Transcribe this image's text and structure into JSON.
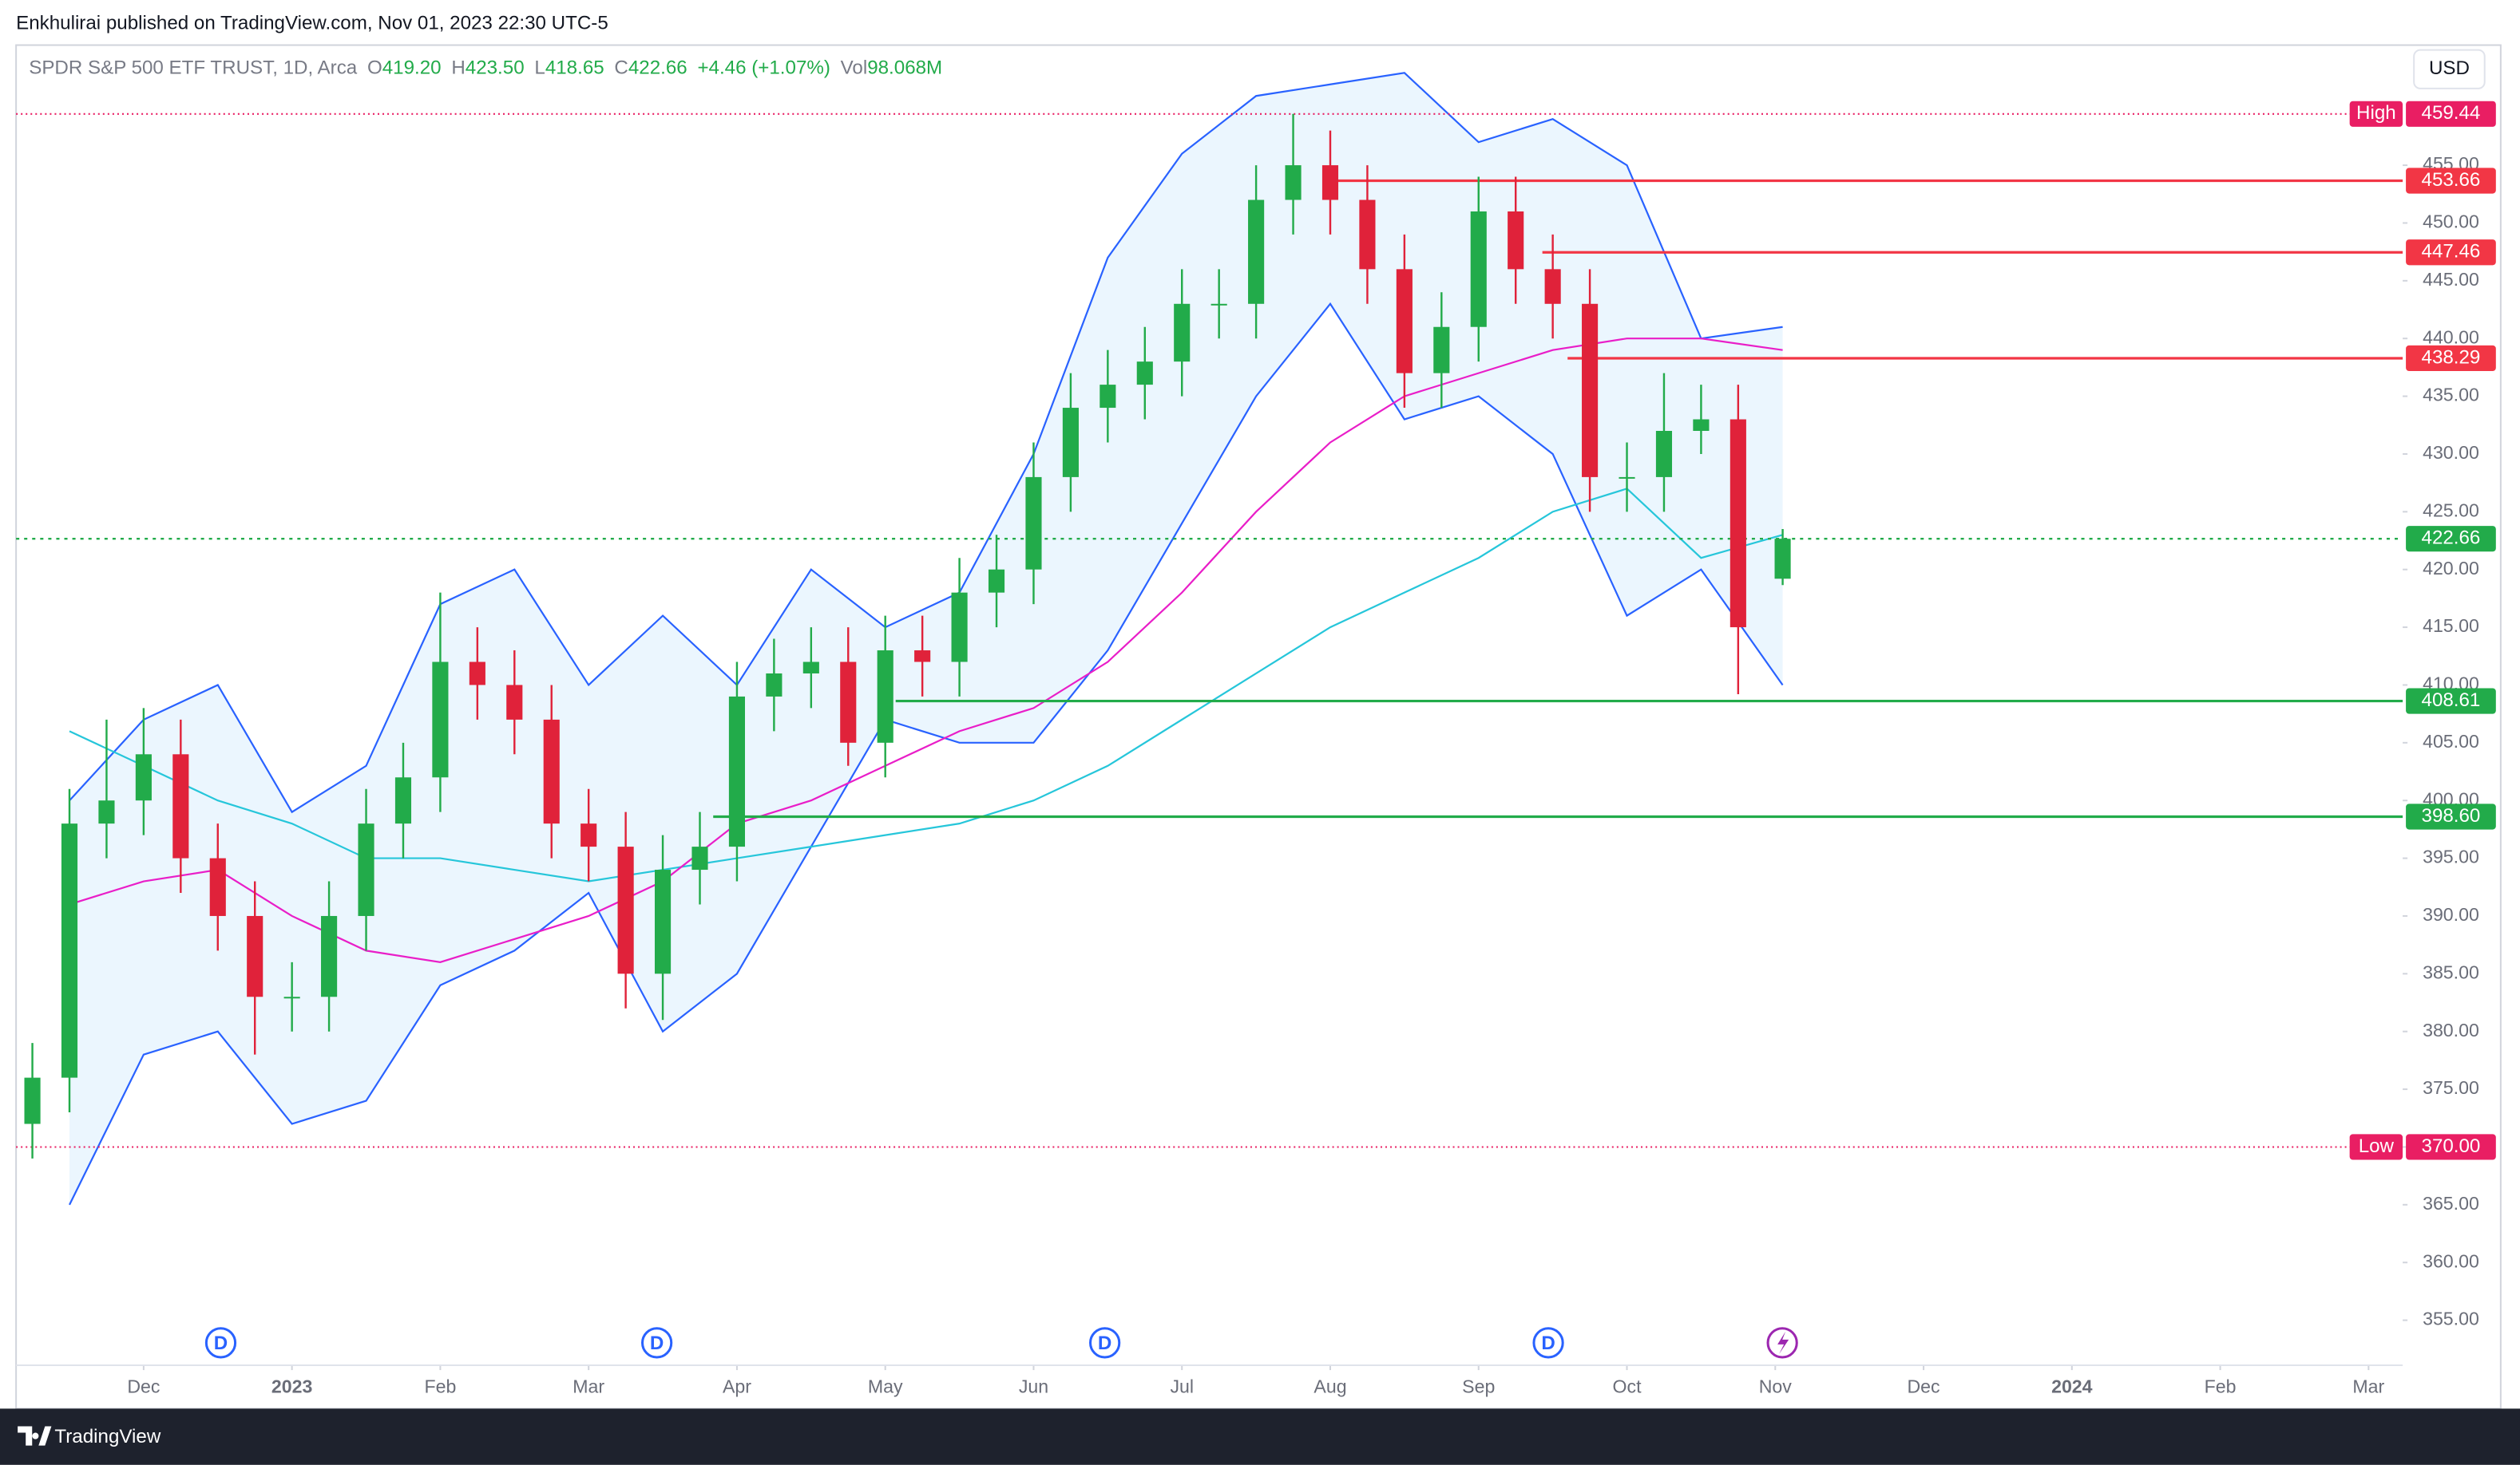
{
  "header": {
    "attribution": "Enkhulirai published on TradingView.com, Nov 01, 2023 22:30 UTC-5",
    "currency": "USD",
    "footer_brand": "TradingView"
  },
  "legend": {
    "symbol": "SPDR S&P 500 ETF TRUST, 1D, Arca",
    "o_label": "O",
    "o": "419.20",
    "h_label": "H",
    "h": "423.50",
    "l_label": "L",
    "l": "418.65",
    "c_label": "C",
    "c": "422.66",
    "change": "+4.46 (+1.07%)",
    "vol_label": "Vol",
    "vol": "98.068M"
  },
  "chart_data": {
    "type": "candlestick",
    "up_color": "#22ab4a",
    "down_color": "#e0223a",
    "x": [
      11.25,
      11.5,
      11.75,
      12,
      12.25,
      12.5,
      12.75,
      13,
      13.25,
      13.5,
      13.75,
      14,
      14.25,
      14.5,
      14.75,
      15,
      15.25,
      15.5,
      15.75,
      16,
      16.25,
      16.5,
      16.75,
      17,
      17.25,
      17.5,
      17.75,
      18,
      18.25,
      18.5,
      18.75,
      19,
      19.25,
      19.5,
      19.75,
      20,
      20.25,
      20.5,
      20.75,
      21,
      21.25,
      21.5,
      21.75,
      22,
      22.25,
      22.5,
      22.75,
      23.05
    ],
    "open": [
      372,
      376,
      398,
      400,
      404,
      395,
      390,
      383,
      383,
      390,
      398,
      402,
      412,
      410,
      407,
      398,
      396,
      385,
      394,
      396,
      409,
      411,
      412,
      405,
      413,
      412,
      418,
      420,
      428,
      434,
      436,
      438,
      443,
      443,
      452,
      455,
      452,
      446,
      437,
      441,
      451,
      446,
      443,
      428,
      428,
      432,
      433,
      419.2
    ],
    "high": [
      379,
      401,
      407,
      408,
      407,
      398,
      393,
      386,
      393,
      401,
      405,
      418,
      415,
      413,
      410,
      401,
      399,
      397,
      399,
      412,
      414,
      415,
      415,
      416,
      416,
      421,
      423,
      431,
      437,
      439,
      441,
      446,
      446,
      455,
      459.44,
      458,
      455,
      449,
      444,
      454,
      454,
      449,
      446,
      431,
      437,
      436,
      436,
      423.5
    ],
    "low": [
      369,
      373,
      395,
      397,
      392,
      387,
      378,
      380,
      380,
      387,
      395,
      399,
      407,
      404,
      395,
      393,
      382,
      381,
      391,
      393,
      406,
      408,
      403,
      402,
      409,
      409,
      415,
      417,
      425,
      431,
      433,
      435,
      440,
      440,
      449,
      449,
      443,
      434,
      434,
      438,
      443,
      440,
      425,
      425,
      425,
      430,
      409.2,
      418.65
    ],
    "close": [
      376,
      398,
      400,
      404,
      395,
      390,
      383,
      383,
      390,
      398,
      402,
      412,
      410,
      407,
      398,
      396,
      385,
      394,
      396,
      409,
      411,
      412,
      405,
      413,
      412,
      418,
      420,
      428,
      434,
      436,
      438,
      443,
      443,
      452,
      455,
      452,
      446,
      437,
      441,
      451,
      446,
      443,
      428,
      428,
      432,
      433,
      415,
      422.66
    ],
    "overlays": {
      "x": [
        11.5,
        12,
        12.5,
        13,
        13.5,
        14,
        14.5,
        15,
        15.5,
        16,
        16.5,
        17,
        17.5,
        18,
        18.5,
        19,
        19.5,
        20,
        20.5,
        21,
        21.5,
        22,
        22.5,
        23.05
      ],
      "band_fill": "#e3f2fd",
      "series": [
        {
          "color": "#2962ff",
          "values": [
            400,
            407,
            410,
            399,
            403,
            417,
            420,
            410,
            416,
            410,
            420,
            415,
            418,
            430,
            447,
            456,
            461,
            462,
            463,
            457,
            459,
            455,
            440,
            441
          ]
        },
        {
          "color": "#2962ff",
          "values": [
            365,
            378,
            380,
            372,
            374,
            384,
            387,
            392,
            380,
            385,
            396,
            407,
            405,
            405,
            413,
            424,
            435,
            443,
            433,
            435,
            430,
            416,
            420,
            410
          ]
        },
        {
          "color": "#26c6da",
          "values": [
            406,
            403,
            400,
            398,
            395,
            395,
            394,
            393,
            394,
            395,
            396,
            397,
            398,
            400,
            403,
            407,
            411,
            415,
            418,
            421,
            425,
            427,
            421,
            423
          ]
        },
        {
          "color": "#e91ec8",
          "values": [
            391,
            393,
            394,
            390,
            387,
            386,
            388,
            390,
            393,
            398,
            400,
            403,
            406,
            408,
            412,
            418,
            425,
            431,
            435,
            437,
            439,
            440,
            440,
            439
          ]
        }
      ]
    },
    "levels": [
      {
        "value": 453.66,
        "color": "#f23645",
        "start": 19.97
      },
      {
        "value": 447.46,
        "color": "#f23645",
        "start": 21.43
      },
      {
        "value": 438.29,
        "color": "#f23645",
        "start": 21.6
      },
      {
        "value": 408.61,
        "color": "#22ab4a",
        "start": 17.07
      },
      {
        "value": 398.6,
        "value_label": "398.60",
        "color": "#22ab4a",
        "start": 15.84
      }
    ],
    "high_marker": {
      "text": "High",
      "value": 459.44,
      "color": "#e91e63"
    },
    "low_marker": {
      "text": "Low",
      "value": 370,
      "value_label": "370.00",
      "color": "#e91e63"
    },
    "last_price": {
      "value": 422.66,
      "color": "#22ab4a"
    },
    "events": {
      "x": [
        12.52,
        15.46,
        18.48,
        21.47
      ],
      "labels": [
        "D",
        "D",
        "D",
        "D"
      ]
    },
    "xlim": [
      11.14,
      27.23
    ],
    "xticks": [
      {
        "value": 12,
        "label": "Dec"
      },
      {
        "value": 13,
        "label": "2023"
      },
      {
        "value": 14,
        "label": "Feb"
      },
      {
        "value": 15,
        "label": "Mar"
      },
      {
        "value": 16,
        "label": "Apr"
      },
      {
        "value": 17,
        "label": "May"
      },
      {
        "value": 18,
        "label": "Jun"
      },
      {
        "value": 19,
        "label": "Jul"
      },
      {
        "value": 20,
        "label": "Aug"
      },
      {
        "value": 21,
        "label": "Sep"
      },
      {
        "value": 22,
        "label": "Oct"
      },
      {
        "value": 23,
        "label": "Nov"
      },
      {
        "value": 24,
        "label": "Dec"
      },
      {
        "value": 25,
        "label": "2024"
      },
      {
        "value": 26,
        "label": "Feb"
      },
      {
        "value": 27,
        "label": "Mar"
      }
    ],
    "ylim": [
      351.1,
      465.4
    ],
    "yticks": [
      {
        "value": 355,
        "label": "355.00"
      },
      {
        "value": 360,
        "label": "360.00"
      },
      {
        "value": 365,
        "label": "365.00"
      },
      {
        "value": 370,
        "label": "370.00"
      },
      {
        "value": 375,
        "label": "375.00"
      },
      {
        "value": 380,
        "label": "380.00"
      },
      {
        "value": 385,
        "label": "385.00"
      },
      {
        "value": 390,
        "label": "390.00"
      },
      {
        "value": 395,
        "label": "395.00"
      },
      {
        "value": 400,
        "label": "400.00"
      },
      {
        "value": 405,
        "label": "405.00"
      },
      {
        "value": 410,
        "label": "410.00"
      },
      {
        "value": 415,
        "label": "415.00"
      },
      {
        "value": 420,
        "label": "420.00"
      },
      {
        "value": 425,
        "label": "425.00"
      },
      {
        "value": 430,
        "label": "430.00"
      },
      {
        "value": 435,
        "label": "435.00"
      },
      {
        "value": 440,
        "label": "440.00"
      },
      {
        "value": 445,
        "label": "445.00"
      },
      {
        "value": 450,
        "label": "450.00"
      },
      {
        "value": 455,
        "label": "455.00"
      }
    ],
    "grid": false
  }
}
